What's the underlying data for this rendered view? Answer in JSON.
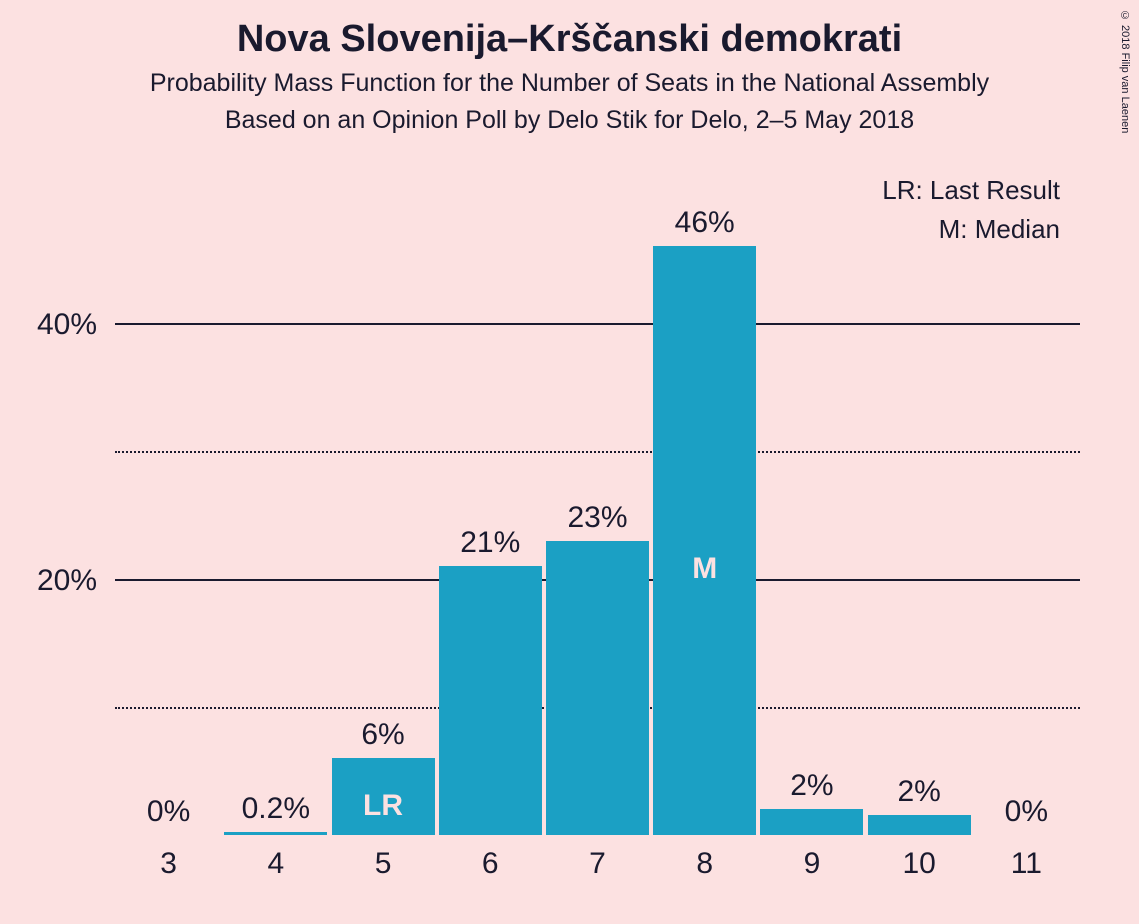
{
  "title": "Nova Slovenija–Krščanski demokrati",
  "subtitle1": "Probability Mass Function for the Number of Seats in the National Assembly",
  "subtitle2": "Based on an Opinion Poll by Delo Stik for Delo, 2–5 May 2018",
  "copyright": "© 2018 Filip van Laenen",
  "legend": {
    "lr": "LR: Last Result",
    "m": "M: Median"
  },
  "chart": {
    "type": "bar",
    "bar_color": "#1ba0c4",
    "inner_label_color": "#fce1e1",
    "background_color": "#fce1e1",
    "text_color": "#1a1a2e",
    "ylim_max": 50,
    "y_ticks": [
      {
        "value": 10,
        "label": "",
        "style": "dotted"
      },
      {
        "value": 20,
        "label": "20%",
        "style": "solid"
      },
      {
        "value": 30,
        "label": "",
        "style": "dotted"
      },
      {
        "value": 40,
        "label": "40%",
        "style": "solid"
      }
    ],
    "categories": [
      "3",
      "4",
      "5",
      "6",
      "7",
      "8",
      "9",
      "10",
      "11"
    ],
    "bars": [
      {
        "value": 0,
        "label": "0%",
        "inner": null
      },
      {
        "value": 0.2,
        "label": "0.2%",
        "inner": null
      },
      {
        "value": 6,
        "label": "6%",
        "inner": "LR"
      },
      {
        "value": 21,
        "label": "21%",
        "inner": null
      },
      {
        "value": 23,
        "label": "23%",
        "inner": null
      },
      {
        "value": 46,
        "label": "46%",
        "inner": "M"
      },
      {
        "value": 2,
        "label": "2%",
        "inner": null
      },
      {
        "value": 2,
        "label": "2%",
        "inner": null
      },
      {
        "value": 0,
        "label": "0%",
        "inner": null
      }
    ]
  }
}
